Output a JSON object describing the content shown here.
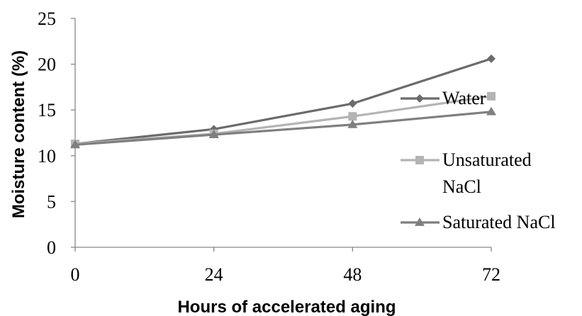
{
  "chart_data": {
    "type": "line",
    "x": [
      0,
      24,
      48,
      72
    ],
    "xticks": [
      "0",
      "24",
      "48",
      "72"
    ],
    "yticks": [
      "0",
      "5",
      "10",
      "15",
      "20",
      "25"
    ],
    "ylim": [
      0,
      25
    ],
    "xlabel": "Hours of accelerated aging",
    "ylabel": "Moisture content (%)",
    "grid": false,
    "legend_position": "right",
    "series": [
      {
        "name": "Water",
        "name_lines": [
          "Water"
        ],
        "values": [
          11.3,
          12.9,
          15.7,
          20.6
        ],
        "color": "#6b6b6b",
        "marker": "diamond"
      },
      {
        "name": "Unsaturated NaCl",
        "name_lines": [
          "Unsaturated",
          "NaCl"
        ],
        "values": [
          11.3,
          12.4,
          14.3,
          16.5
        ],
        "color": "#b4b4b4",
        "marker": "square"
      },
      {
        "name": "Saturated NaCl",
        "name_lines": [
          "Saturated NaCl"
        ],
        "values": [
          11.2,
          12.3,
          13.4,
          14.8
        ],
        "color": "#7f7f7f",
        "marker": "triangle"
      }
    ]
  }
}
